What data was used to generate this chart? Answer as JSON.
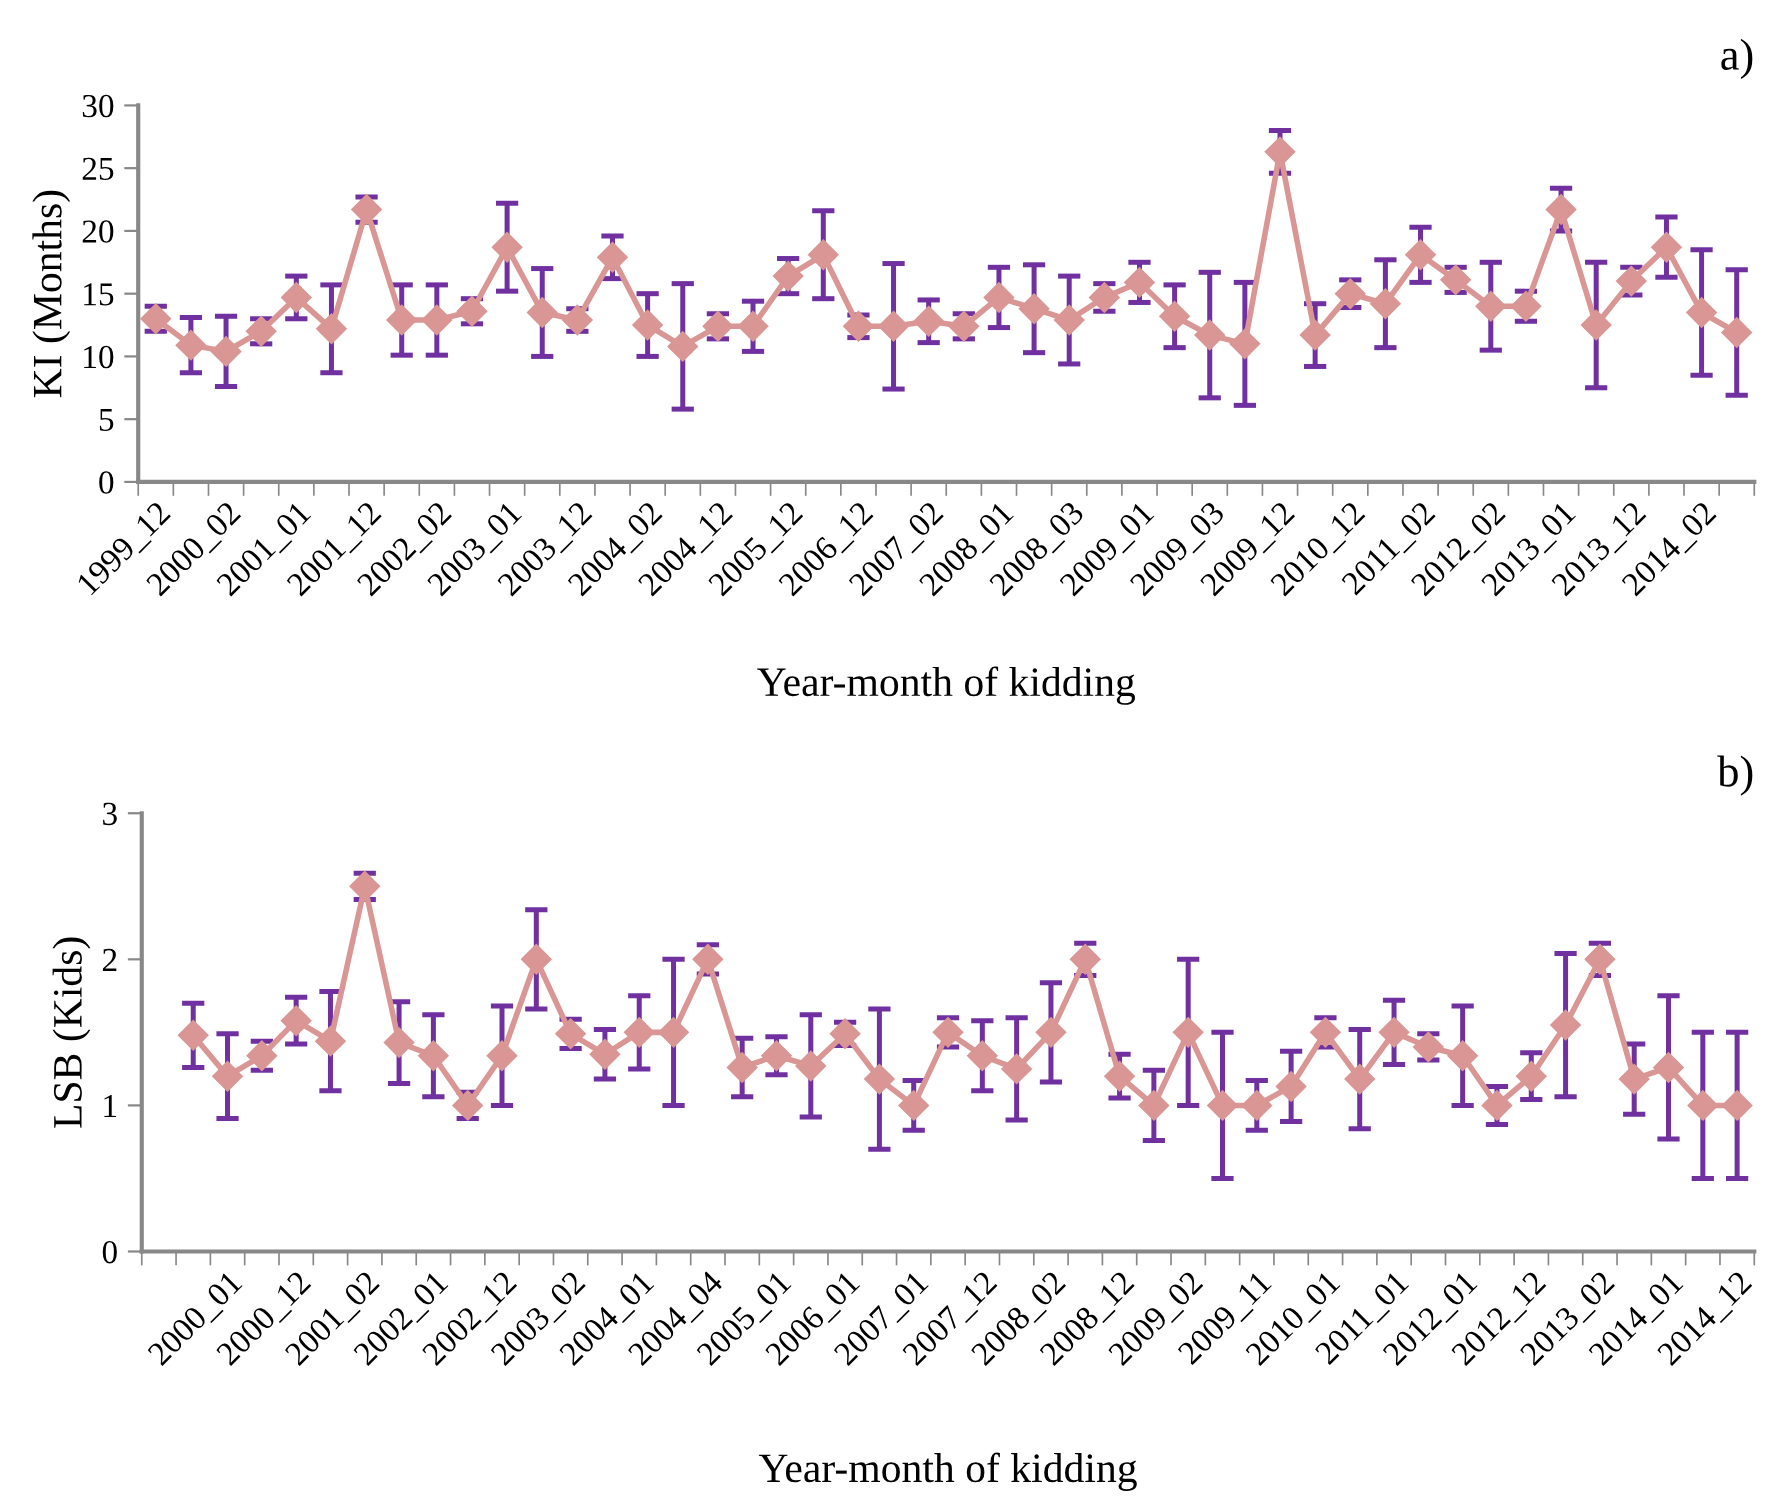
{
  "chart_data": [
    {
      "type": "line",
      "annotations": [
        "a)"
      ],
      "xlabel": "Year-month of kidding",
      "ylabel": "KI (Months)",
      "categories": [
        "1999_12",
        null,
        "2000_02",
        null,
        "2001_01",
        null,
        "2001_12",
        null,
        "2002_02",
        null,
        "2003_01",
        null,
        "2003_12",
        null,
        "2004_02",
        null,
        "2004_12",
        null,
        "2005_12",
        null,
        "2006_12",
        null,
        "2007_02",
        null,
        "2008_01",
        null,
        "2008_03",
        null,
        "2009_01",
        null,
        "2009_03",
        null,
        "2009_12",
        null,
        "2010_12",
        null,
        "2011_02",
        null,
        "2012_02",
        null,
        "2013_01",
        null,
        "2013_12",
        null,
        "2014_02",
        null
      ],
      "series": [
        {
          "color": "#d99694",
          "values": [
            13.0,
            10.9,
            10.4,
            12.0,
            14.7,
            12.2,
            21.7,
            12.9,
            12.9,
            13.6,
            18.7,
            13.5,
            12.9,
            17.9,
            12.5,
            10.8,
            12.4,
            12.4,
            16.4,
            18.1,
            12.4,
            12.4,
            12.8,
            12.4,
            14.7,
            13.8,
            12.9,
            14.7,
            15.9,
            13.2,
            11.7,
            11.0,
            26.3,
            11.7,
            15.0,
            14.2,
            18.1,
            16.1,
            14.0,
            14.0,
            21.7,
            12.5,
            16.0,
            18.7,
            13.5,
            11.9
          ],
          "errors": [
            1.0,
            2.2,
            2.8,
            1.0,
            1.7,
            3.5,
            1.0,
            2.8,
            2.8,
            1.0,
            3.5,
            3.5,
            0.9,
            1.7,
            2.5,
            5.0,
            1.0,
            2.0,
            1.4,
            3.5,
            0.9,
            5.0,
            1.7,
            1.0,
            2.4,
            3.5,
            3.5,
            1.1,
            1.6,
            2.5,
            5.0,
            4.9,
            1.7,
            2.5,
            1.1,
            3.5,
            2.2,
            1.0,
            3.5,
            1.2,
            1.7,
            5.0,
            1.1,
            2.4,
            5.0,
            5.0
          ]
        }
      ],
      "ylim": [
        0,
        30
      ],
      "yticks": [
        0,
        5,
        10,
        15,
        20,
        25,
        30
      ],
      "marker": "diamond",
      "line_style": "solid",
      "grid": false
    },
    {
      "type": "line",
      "annotations": [
        "b)"
      ],
      "xlabel": "Year-month of kidding",
      "ylabel": "LSB (Kids)",
      "categories": [
        null,
        null,
        "2000_01",
        null,
        "2000_12",
        null,
        "2001_02",
        null,
        "2002_01",
        null,
        "2002_12",
        null,
        "2003_02",
        null,
        "2004_01",
        null,
        "2004_04",
        null,
        "2005_01",
        null,
        "2006_01",
        null,
        "2007_01",
        null,
        "2007_12",
        null,
        "2008_02",
        null,
        "2008_12",
        null,
        "2009_02",
        null,
        "2009_11",
        null,
        "2010_01",
        null,
        "2011_01",
        null,
        "2012_01",
        null,
        "2012_12",
        null,
        "2013_02",
        null,
        "2014_01",
        null,
        "2014_12"
      ],
      "series": [
        {
          "color": "#d99694",
          "values": [
            null,
            1.48,
            1.2,
            1.34,
            1.58,
            1.44,
            2.5,
            1.43,
            1.34,
            1.0,
            1.34,
            2.0,
            1.49,
            1.35,
            1.5,
            1.5,
            2.0,
            1.26,
            1.34,
            1.27,
            1.49,
            1.18,
            1.0,
            1.5,
            1.34,
            1.25,
            1.5,
            2.0,
            1.2,
            1.0,
            1.5,
            1.0,
            1.0,
            1.13,
            1.5,
            1.18,
            1.5,
            1.4,
            1.34,
            1.0,
            1.2,
            1.55,
            2.0,
            1.18,
            1.26,
            1.0,
            1.0
          ],
          "errors": [
            null,
            0.22,
            0.29,
            0.1,
            0.16,
            0.34,
            0.09,
            0.28,
            0.28,
            0.09,
            0.34,
            0.34,
            0.1,
            0.17,
            0.25,
            0.5,
            0.1,
            0.2,
            0.13,
            0.35,
            0.08,
            0.48,
            0.17,
            0.1,
            0.24,
            0.35,
            0.34,
            0.11,
            0.15,
            0.24,
            0.5,
            0.5,
            0.17,
            0.24,
            0.1,
            0.34,
            0.22,
            0.09,
            0.34,
            0.13,
            0.16,
            0.49,
            0.11,
            0.24,
            0.49,
            0.5,
            0.5
          ]
        }
      ],
      "ylim": [
        0,
        3
      ],
      "yticks": [
        0,
        1,
        2,
        3
      ],
      "marker": "diamond",
      "line_style": "solid",
      "grid": false
    }
  ]
}
